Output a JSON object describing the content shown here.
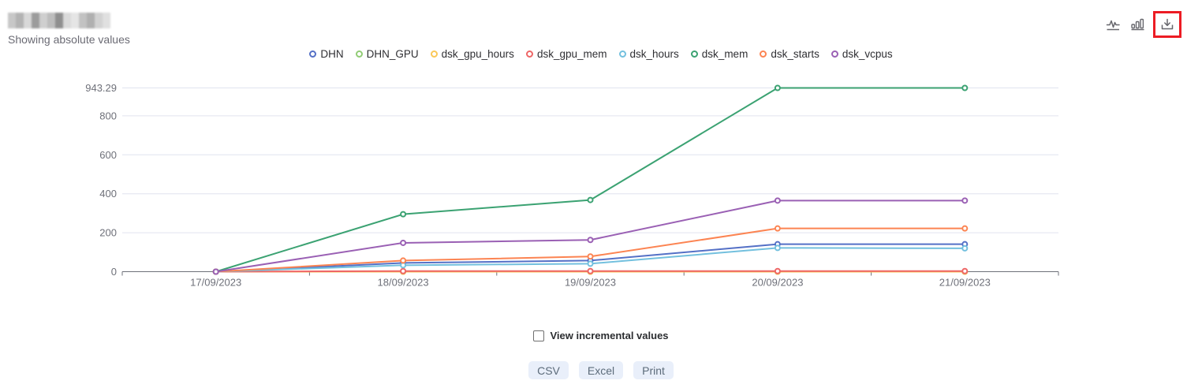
{
  "header": {
    "subtitle": "Showing absolute values"
  },
  "toolbar": {
    "icons": [
      {
        "name": "line-chart-view"
      },
      {
        "name": "bar-chart-view"
      },
      {
        "name": "download",
        "highlighted": true
      }
    ],
    "highlight_color": "#ec1c24",
    "icon_color": "#67676d"
  },
  "chart_data": {
    "type": "line",
    "x": [
      "17/09/2023",
      "18/09/2023",
      "19/09/2023",
      "20/09/2023",
      "21/09/2023"
    ],
    "series": [
      {
        "name": "DHN",
        "color": "#5470c6",
        "values": [
          0,
          45,
          57,
          141,
          141
        ]
      },
      {
        "name": "DHN_GPU",
        "color": "#91cc75",
        "values": [
          0,
          0,
          0,
          0,
          0
        ]
      },
      {
        "name": "dsk_gpu_hours",
        "color": "#fac858",
        "values": [
          0,
          0,
          0,
          0,
          0
        ]
      },
      {
        "name": "dsk_gpu_mem",
        "color": "#ee6666",
        "values": [
          0,
          3,
          3,
          3,
          3
        ]
      },
      {
        "name": "dsk_hours",
        "color": "#73c0de",
        "values": [
          0,
          33,
          41,
          122,
          120
        ]
      },
      {
        "name": "dsk_mem",
        "color": "#3ba272",
        "values": [
          0,
          295,
          368,
          943.29,
          943.29
        ]
      },
      {
        "name": "dsk_starts",
        "color": "#fc8452",
        "values": [
          0,
          57,
          78,
          222,
          222
        ]
      },
      {
        "name": "dsk_vcpus",
        "color": "#9a60b4",
        "values": [
          0,
          148,
          163,
          365,
          365
        ]
      }
    ],
    "y_ticks": [
      0,
      200,
      400,
      600,
      800,
      943.29
    ],
    "y_tick_labels": [
      "0",
      "200",
      "400",
      "600",
      "800",
      "943.29"
    ],
    "y_max": 943.29,
    "ylim": [
      0,
      943.29
    ],
    "grid": true,
    "legend_position": "top",
    "axis_color": "#6E7079",
    "grid_color": "#e0e4ef",
    "label_color": "#6E7079"
  },
  "controls": {
    "incremental_label": "View incremental values",
    "incremental_checked": false,
    "export_buttons": [
      "CSV",
      "Excel",
      "Print"
    ]
  }
}
